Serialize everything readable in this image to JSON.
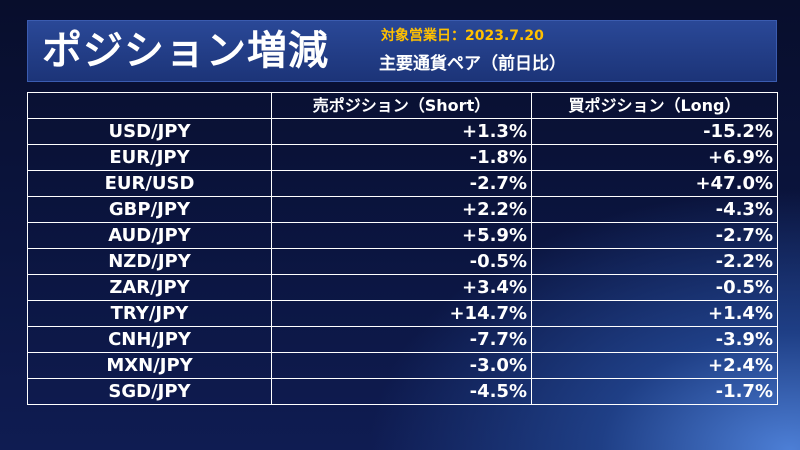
{
  "header": {
    "title": "ポジション増減",
    "date": "対象営業日：2023.7.20",
    "subtitle": "主要通貨ペア（前日比）"
  },
  "table": {
    "columns": [
      "",
      "売ポジション（Short）",
      "買ポジション（Long）"
    ],
    "rows": [
      {
        "pair": "USD/JPY",
        "short": "+1.3%",
        "long": "-15.2%"
      },
      {
        "pair": "EUR/JPY",
        "short": "-1.8%",
        "long": "+6.9%"
      },
      {
        "pair": "EUR/USD",
        "short": "-2.7%",
        "long": "+47.0%"
      },
      {
        "pair": "GBP/JPY",
        "short": "+2.2%",
        "long": "-4.3%"
      },
      {
        "pair": "AUD/JPY",
        "short": "+5.9%",
        "long": "-2.7%"
      },
      {
        "pair": "NZD/JPY",
        "short": "-0.5%",
        "long": "-2.2%"
      },
      {
        "pair": "ZAR/JPY",
        "short": "+3.4%",
        "long": "-0.5%"
      },
      {
        "pair": "TRY/JPY",
        "short": "+14.7%",
        "long": "+1.4%"
      },
      {
        "pair": "CNH/JPY",
        "short": "-7.7%",
        "long": "-3.9%"
      },
      {
        "pair": "MXN/JPY",
        "short": "-3.0%",
        "long": "+2.4%"
      },
      {
        "pair": "SGD/JPY",
        "short": "-4.5%",
        "long": "-1.7%"
      }
    ]
  }
}
